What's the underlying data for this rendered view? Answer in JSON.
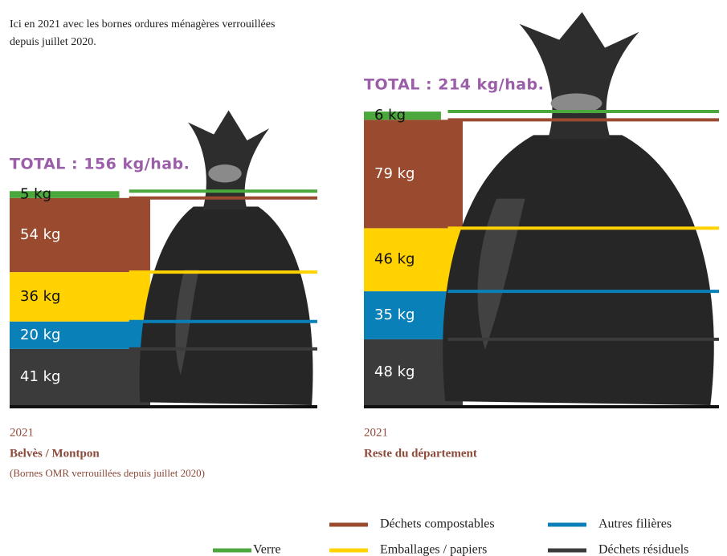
{
  "chart_data": {
    "type": "stacked-bar",
    "subtitle": "Ici en 2021 avec les bornes ordures ménagères verrouillées depuis juillet 2020.",
    "categories": [
      "Belvès / Montpon",
      "Reste du département"
    ],
    "totals": [
      "TOTAL : 156 kg/hab.",
      "TOTAL : 214 kg/hab."
    ],
    "years": [
      "2021",
      "2021"
    ],
    "notes": [
      "(Bornes OMR verrouillées depuis juillet 2020)",
      null
    ],
    "series": [
      {
        "name": "Déchets résiduels",
        "color": "#3b3b3b",
        "values": [
          41,
          48
        ],
        "value_labels": [
          "41 kg",
          "48 kg"
        ]
      },
      {
        "name": "Autres filières",
        "color": "#0a80b8",
        "values": [
          20,
          35
        ],
        "value_labels": [
          "20 kg",
          "35 kg"
        ]
      },
      {
        "name": "Emballages / papiers",
        "color": "#ffd200",
        "values": [
          36,
          46
        ],
        "value_labels": [
          "36 kg",
          "46 kg"
        ]
      },
      {
        "name": "Déchets compostables",
        "color": "#9a4a2e",
        "values": [
          54,
          79
        ],
        "value_labels": [
          "54 kg",
          "79 kg"
        ]
      },
      {
        "name": "Verre",
        "color": "#4aa83c",
        "values": [
          5,
          6
        ],
        "value_labels": [
          "5 kg",
          "6 kg"
        ]
      }
    ]
  }
}
